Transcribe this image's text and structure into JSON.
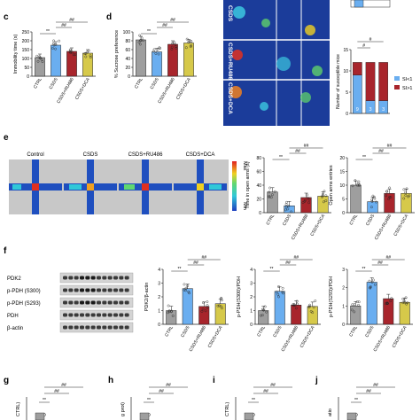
{
  "panel_labels": [
    "c",
    "d",
    "e",
    "f",
    "g",
    "h",
    "i",
    "j"
  ],
  "groups": [
    "CTRL",
    "CSDS",
    "CSDS+RU486",
    "CSDS+DCA"
  ],
  "colors": {
    "ctrl": "#9e9e9e",
    "csds": "#6aaef0",
    "ru486": "#a8252c",
    "dca": "#d6c94a",
    "heat_bg": "#1b3c9a"
  },
  "sig": {
    "double_star": "**",
    "double_hash": "##",
    "single_hash": "#"
  },
  "panel_e": {
    "heatmap_labels": [
      "Control",
      "CSDS",
      "CSDS+RU486",
      "CSDS+DCA"
    ],
    "colorbar_max": "Max",
    "colorbar_min": "Min"
  },
  "panel_f": {
    "blot_labels": [
      "PDK2",
      "p-PDH (S300)",
      "p-PDH (S293)",
      "PDH",
      "β-actin"
    ]
  },
  "open_field_labels": [
    "CSDS",
    "CSDS+RU486",
    "CSDS+DCA"
  ],
  "susceptible": {
    "legend_si_lt1": "SI<1",
    "legend_si_gt1": "SI>1"
  },
  "chart_data": [
    {
      "panel": "c",
      "type": "bar",
      "categories": [
        "CTRL",
        "CSDS",
        "CSDS+RU486",
        "CSDS+DCA"
      ],
      "values": [
        105,
        175,
        140,
        130
      ],
      "ylabel": "Immobility time (s)",
      "ylim": [
        0,
        250
      ],
      "yticks": [
        0,
        50,
        100,
        150,
        200,
        250
      ]
    },
    {
      "panel": "d",
      "type": "bar",
      "categories": [
        "CTRL",
        "CSDS",
        "CSDS+RU486",
        "CSDS+DCA"
      ],
      "values": [
        82,
        55,
        72,
        75
      ],
      "ylabel": "% Sucrose preference",
      "ylim": [
        0,
        100
      ],
      "yticks": [
        0,
        20,
        40,
        60,
        80,
        100
      ]
    },
    {
      "panel": "susceptible",
      "type": "bar",
      "categories": [
        "CSDS",
        "CSDS+RU486",
        "CSDS+DCA"
      ],
      "series": [
        {
          "name": "SI<1",
          "values": [
            9,
            3,
            3
          ]
        },
        {
          "name": "SI>1",
          "values": [
            3,
            9,
            9
          ]
        }
      ],
      "ylabel": "Number of susceptible mice",
      "ylim": [
        0,
        15
      ],
      "yticks": [
        0,
        5,
        10,
        15
      ],
      "data_labels": [
        "9",
        "3",
        "3"
      ]
    },
    {
      "panel": "e-time",
      "type": "bar",
      "categories": [
        "CTRL",
        "CSDS",
        "CSDS+RU486",
        "CSDS+DCA"
      ],
      "values": [
        30,
        10,
        22,
        24
      ],
      "ylabel": "Time in open arms (s)",
      "ylim": [
        0,
        80
      ],
      "yticks": [
        0,
        20,
        40,
        60,
        80
      ]
    },
    {
      "panel": "e-entries",
      "type": "bar",
      "categories": [
        "CTRL",
        "CSDS",
        "CSDS+RU486",
        "CSDS+DCA"
      ],
      "values": [
        10,
        4,
        7,
        7
      ],
      "ylabel": "Open arms entries",
      "ylim": [
        0,
        20
      ],
      "yticks": [
        0,
        5,
        10,
        15,
        20
      ]
    },
    {
      "panel": "f-pdk2",
      "type": "bar",
      "categories": [
        "CTRL",
        "CSDS",
        "CSDS+RU486",
        "CSDS+DCA"
      ],
      "values": [
        1.0,
        2.6,
        1.3,
        1.5
      ],
      "ylabel": "PDK2/β-actin",
      "ylim": [
        0,
        4
      ],
      "yticks": [
        0,
        1,
        2,
        3,
        4
      ]
    },
    {
      "panel": "f-pdh300",
      "type": "bar",
      "categories": [
        "CTRL",
        "CSDS",
        "CSDS+RU486",
        "CSDS+DCA"
      ],
      "values": [
        1.0,
        2.4,
        1.4,
        1.3
      ],
      "ylabel": "p-PDH(S300)/PDH",
      "ylim": [
        0,
        4
      ],
      "yticks": [
        0,
        1,
        2,
        3,
        4
      ]
    },
    {
      "panel": "f-pdh293",
      "type": "bar",
      "categories": [
        "CTRL",
        "CSDS",
        "CSDS+RU486",
        "CSDS+DCA"
      ],
      "values": [
        1.0,
        2.3,
        1.4,
        1.2
      ],
      "ylabel": "p-PDH(S293)/PDH",
      "ylim": [
        0,
        3
      ],
      "yticks": [
        0,
        1,
        2,
        3
      ]
    }
  ],
  "bottom_row_partial_ylabels": [
    "CTRL)",
    "g prot)",
    "CTRL)",
    "atio"
  ]
}
